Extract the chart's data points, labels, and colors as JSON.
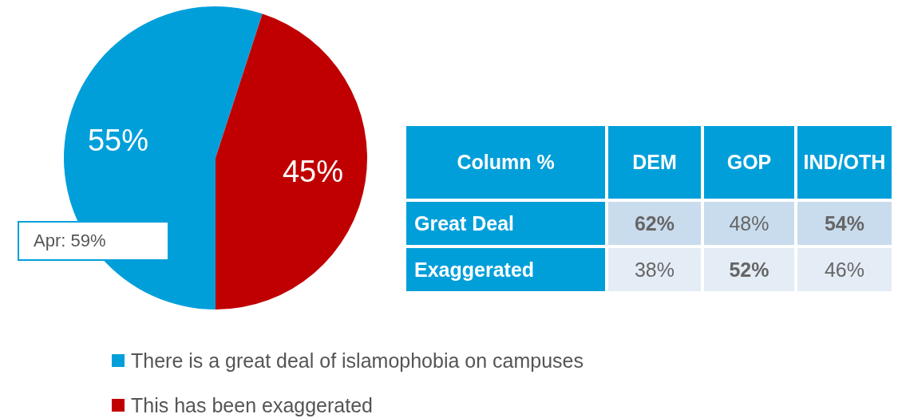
{
  "chart_data": [
    {
      "type": "pie",
      "categories": [
        "There is a great deal of islamophobia on campuses",
        "This has been exaggerated"
      ],
      "values": [
        55,
        45
      ],
      "colors": [
        "#009fda",
        "#c00000"
      ],
      "value_labels": [
        "55%",
        "45%"
      ],
      "legend": "bottom",
      "annotations": [
        "Apr: 59%"
      ]
    },
    {
      "type": "heatmap",
      "title": "Column %",
      "categories": [
        "DEM",
        "GOP",
        "IND/OTH"
      ],
      "y_categories": [
        "Great Deal",
        "Exaggerated"
      ],
      "cells": [
        [
          62,
          48,
          54
        ],
        [
          38,
          52,
          46
        ]
      ],
      "cell_labels": [
        [
          "62%",
          "48%",
          "54%"
        ],
        [
          "38%",
          "52%",
          "46%"
        ]
      ]
    }
  ]
}
